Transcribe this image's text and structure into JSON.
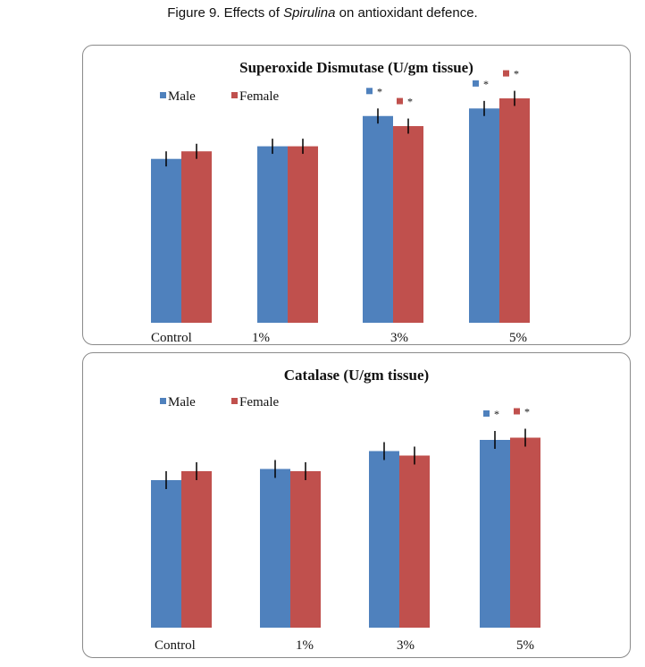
{
  "caption": {
    "label": "Figure 9.",
    "text_before": " Effects of ",
    "italic": "Spirulina",
    "text_after": " on antioxidant defence."
  },
  "colors": {
    "male": "#4F81BD",
    "female": "#C0504D",
    "error": "#000000"
  },
  "chart_data": [
    {
      "type": "bar",
      "title": "Superoxide Dismutase  (U/gm tissue)",
      "xlabel": "",
      "ylabel": "",
      "y_axis_shown": false,
      "units_note": "relative bar heights (no y-axis shown); 1.0 = top of plot area",
      "ylim": [
        0,
        1
      ],
      "legend": {
        "placement": "top-left",
        "entries": [
          "Male",
          "Female"
        ]
      },
      "categories": [
        "Control",
        "1%",
        "3%",
        "5%"
      ],
      "series": [
        {
          "name": "Male",
          "values": [
            0.65,
            0.7,
            0.82,
            0.85
          ],
          "errors": [
            0.03,
            0.03,
            0.03,
            0.03
          ],
          "significant": [
            false,
            false,
            true,
            true
          ]
        },
        {
          "name": "Female",
          "values": [
            0.68,
            0.7,
            0.78,
            0.89
          ],
          "errors": [
            0.03,
            0.03,
            0.03,
            0.03
          ],
          "significant": [
            false,
            false,
            true,
            true
          ]
        }
      ],
      "significance_marker": "*"
    },
    {
      "type": "bar",
      "title": "Catalase (U/gm tissue)",
      "xlabel": "",
      "ylabel": "",
      "y_axis_shown": false,
      "units_note": "relative bar heights (no y-axis shown); 1.0 = top of plot area",
      "ylim": [
        0,
        1
      ],
      "legend": {
        "placement": "top-left",
        "entries": [
          "Male",
          "Female"
        ]
      },
      "categories": [
        "Control",
        "1%",
        "3%",
        "5%"
      ],
      "series": [
        {
          "name": "Male",
          "values": [
            0.66,
            0.71,
            0.79,
            0.84
          ],
          "errors": [
            0.04,
            0.04,
            0.04,
            0.04
          ],
          "significant": [
            false,
            false,
            false,
            true
          ]
        },
        {
          "name": "Female",
          "values": [
            0.7,
            0.7,
            0.77,
            0.85
          ],
          "errors": [
            0.04,
            0.04,
            0.04,
            0.04
          ],
          "significant": [
            false,
            false,
            false,
            true
          ]
        }
      ],
      "significance_marker": "*"
    }
  ]
}
